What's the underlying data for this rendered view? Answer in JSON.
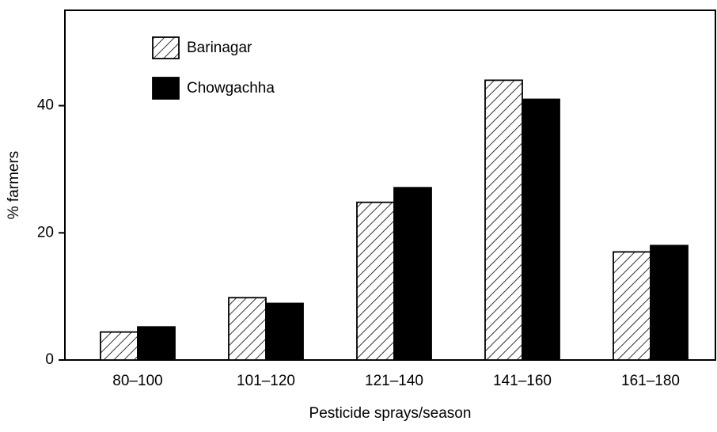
{
  "chart_data": {
    "type": "bar",
    "categories": [
      "80–100",
      "101–120",
      "121–140",
      "141–160",
      "161–180"
    ],
    "series": [
      {
        "name": "Barinagar",
        "color": "hatched",
        "values": [
          4.4,
          9.8,
          24.8,
          44,
          17
        ]
      },
      {
        "name": "Chowgachha",
        "color": "#000000",
        "values": [
          5.2,
          8.9,
          27.1,
          41,
          18
        ]
      }
    ],
    "x_label": "Pesticide sprays/season",
    "y_label": "% farmers",
    "ylim": [
      0,
      55
    ],
    "yticks": [
      0,
      20,
      40
    ],
    "legend": "top-left"
  }
}
